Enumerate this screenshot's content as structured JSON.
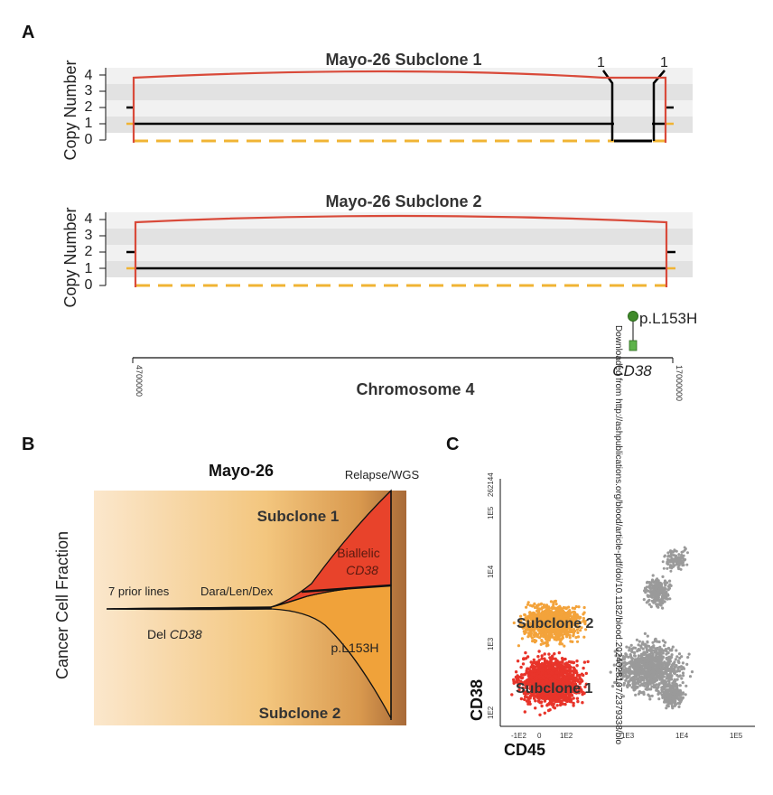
{
  "panel_a": {
    "letter": "A",
    "chart_data": [
      {
        "type": "line",
        "title": "Mayo-26 Subclone 1",
        "ylabel": "Copy Number",
        "yticks": [
          "0",
          "1",
          "2",
          "3",
          "4"
        ],
        "ylim": [
          0,
          4
        ],
        "peak_labels": [
          "1",
          "1"
        ],
        "series": [
          {
            "name": "",
            "color": "#d94a3a",
            "style": "total",
            "values": [
              3.8,
              4.0,
              3.8
            ]
          },
          {
            "name": "",
            "color": "#000000",
            "style": "major",
            "values": [
              1,
              1,
              0,
              1
            ]
          },
          {
            "name": "",
            "color": "#f0b434",
            "style": "minor-dashed",
            "values": [
              0,
              0
            ]
          }
        ]
      },
      {
        "type": "line",
        "title": "Mayo-26 Subclone 2",
        "ylabel": "Copy Number",
        "yticks": [
          "0",
          "1",
          "2",
          "3",
          "4"
        ],
        "ylim": [
          0,
          4
        ],
        "series": [
          {
            "name": "",
            "color": "#d94a3a",
            "style": "total",
            "values": [
              3.8,
              4.0,
              3.8
            ]
          },
          {
            "name": "",
            "color": "#000000",
            "style": "major",
            "values": [
              1,
              1
            ]
          },
          {
            "name": "",
            "color": "#f0b434",
            "style": "minor-dashed",
            "values": [
              0,
              0
            ]
          }
        ]
      }
    ],
    "mutation_label": "p.L153H",
    "gene_label": "CD38",
    "xlabel": "Chromosome 4",
    "xtick_left": "4700000",
    "xtick_right": "17000000"
  },
  "panel_b": {
    "letter": "B",
    "title": "Mayo-26",
    "ylabel": "Cancer Cell Fraction",
    "timepoint": "Relapse/WGS",
    "labels": {
      "prior_lines": "7 prior lines",
      "treatment": "Dara/Len/Dex",
      "del": "Del",
      "del_gene": "CD38",
      "subclone1": "Subclone 1",
      "subclone2": "Subclone 2",
      "biallelic": "Biallelic",
      "biallelic_gene": "CD38",
      "mutation": "p.L153H"
    },
    "colors": {
      "subclone1": "#e8432b",
      "subclone2": "#f0a23a",
      "background_start": "#fbe3c2",
      "background_end": "#b8773c"
    }
  },
  "panel_c": {
    "letter": "C",
    "ylabel": "CD38",
    "xlabel": "CD45",
    "xticks": [
      "-1E2",
      "0",
      "1E2",
      "1E3",
      "1E4",
      "1E5"
    ],
    "yticks": [
      "1E2",
      "1E3",
      "1E4",
      "1E5",
      "262144"
    ],
    "labels": {
      "subclone1": "Subclone 1",
      "subclone2": "Subclone 2"
    },
    "colors": {
      "subclone1": "#e8342a",
      "subclone2": "#f3a33b",
      "other": "#9a9a9a"
    }
  },
  "watermark": "Downloaded from http://ashpublications.org/blood/article-pdf/doi/10.1182/blood.2024028107/2379338/blo"
}
